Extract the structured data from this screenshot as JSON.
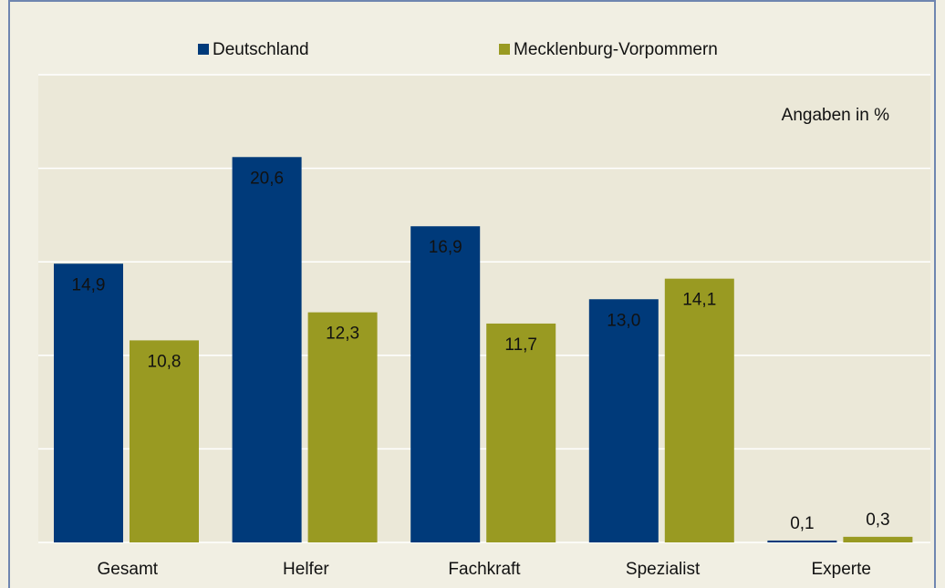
{
  "chart_data": {
    "type": "bar",
    "annotation": "Angaben in %",
    "categories": [
      "Gesamt",
      "Helfer",
      "Fachkraft",
      "Spezialist",
      "Experte"
    ],
    "series": [
      {
        "name": "Deutschland",
        "color": "#003a7a",
        "values": [
          14.9,
          20.6,
          16.9,
          13.0,
          0.1
        ],
        "value_labels": [
          "14,9",
          "20,6",
          "16,9",
          "13,0",
          "0,1"
        ]
      },
      {
        "name": "Mecklenburg-Vorpommern",
        "color": "#999a22",
        "values": [
          10.8,
          12.3,
          11.7,
          14.1,
          0.3
        ],
        "value_labels": [
          "10,8",
          "12,3",
          "11,7",
          "14,1",
          "0,3"
        ]
      }
    ],
    "ylim": [
      0,
      25
    ],
    "yticks": [
      0,
      5,
      10,
      15,
      20,
      25
    ],
    "grid": true,
    "legend": "top"
  }
}
